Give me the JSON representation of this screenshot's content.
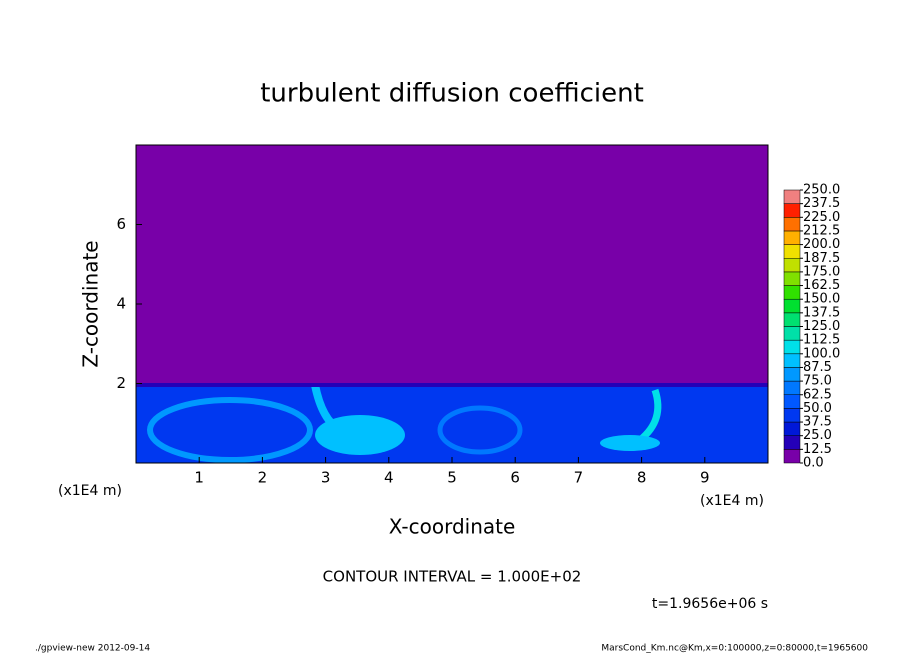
{
  "chart_data": {
    "type": "contour",
    "title": "turbulent diffusion coefficient",
    "xlabel": "X-coordinate",
    "ylabel": "Z-coordinate",
    "x_unit": "(x1E4 m)",
    "y_unit": "(x1E4 m)",
    "xlim": [
      0,
      10
    ],
    "ylim": [
      0,
      8
    ],
    "xticks": [
      1,
      2,
      3,
      4,
      5,
      6,
      7,
      8,
      9
    ],
    "yticks": [
      2,
      4,
      6
    ],
    "levels": [
      {
        "value": 0,
        "label": "0.0"
      },
      {
        "value": 12.5,
        "label": "12.5"
      },
      {
        "value": 25,
        "label": "25.0"
      },
      {
        "value": 37.5,
        "label": "37.5"
      },
      {
        "value": 50,
        "label": "50.0"
      },
      {
        "value": 62.5,
        "label": "62.5"
      },
      {
        "value": 75,
        "label": "75.0"
      },
      {
        "value": 87.5,
        "label": "87.5"
      },
      {
        "value": 100,
        "label": "100.0"
      },
      {
        "value": 112.5,
        "label": "112.5"
      },
      {
        "value": 125,
        "label": "125.0"
      },
      {
        "value": 137.5,
        "label": "137.5"
      },
      {
        "value": 150,
        "label": "150.0"
      },
      {
        "value": 162.5,
        "label": "162.5"
      },
      {
        "value": 175,
        "label": "175.0"
      },
      {
        "value": 187.5,
        "label": "187.5"
      },
      {
        "value": 200,
        "label": "200.0"
      },
      {
        "value": 212.5,
        "label": "212.5"
      },
      {
        "value": 225,
        "label": "225.0"
      },
      {
        "value": 237.5,
        "label": "237.5"
      },
      {
        "value": 250,
        "label": "250.0"
      }
    ],
    "colors": [
      "#7800a8",
      "#2400b8",
      "#0018d8",
      "#0038f0",
      "#0058ff",
      "#0078ff",
      "#0098ff",
      "#00c0ff",
      "#00e0e8",
      "#00e0a8",
      "#00e070",
      "#00e030",
      "#30e000",
      "#80e000",
      "#c0e000",
      "#f0e000",
      "#ffb000",
      "#ff7000",
      "#ff2000",
      "#f08080"
    ],
    "contour_interval": "CONTOUR INTERVAL = 1.000E+02",
    "time_label": "t=1.9656e+06 s",
    "footer_left": "./gpview-new  2012-09-14",
    "footer_right": "MarsCond_Km.nc@Km,x=0:100000,z=0:80000,t=1965600"
  }
}
